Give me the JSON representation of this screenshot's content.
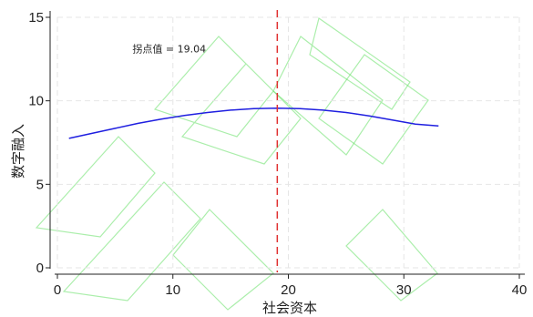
{
  "chart_data": {
    "type": "line",
    "title": "",
    "xlabel": "社会资本",
    "ylabel": "数字融入",
    "xlim": [
      0,
      40
    ],
    "ylim": [
      0,
      15
    ],
    "xticks": [
      0,
      10,
      20,
      30,
      40
    ],
    "yticks": [
      0,
      5,
      10,
      15
    ],
    "grid": true,
    "series": [
      {
        "color": "#1f1fe0",
        "x": [
          1,
          3,
          5,
          7,
          9,
          11,
          13,
          15,
          17,
          19.04,
          21,
          23,
          25,
          27,
          29,
          31,
          33
        ],
        "y": [
          7.75,
          8.05,
          8.35,
          8.65,
          8.9,
          9.12,
          9.3,
          9.44,
          9.53,
          9.56,
          9.53,
          9.44,
          9.3,
          9.1,
          8.85,
          8.6,
          8.5
        ]
      }
    ],
    "vline": {
      "x": 19.04,
      "color": "#e03030",
      "style": "dashed"
    },
    "annotation": {
      "text": "拐点值 = 19.04",
      "x": 6.5,
      "y": 12.9
    }
  }
}
